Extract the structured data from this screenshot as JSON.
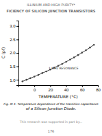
{
  "chart_data": {
    "type": "line",
    "x_label": "TEMPERATURE (°C)",
    "y_label": "C (pf)",
    "x": [
      -15,
      -10,
      -5,
      0,
      5,
      10,
      15,
      20,
      25,
      30,
      35,
      40,
      45,
      50,
      55,
      60,
      65,
      70,
      75
    ],
    "values": [
      0.94,
      1.0,
      1.06,
      1.12,
      1.18,
      1.25,
      1.31,
      1.38,
      1.45,
      1.52,
      1.59,
      1.67,
      1.75,
      1.83,
      1.92,
      2.01,
      2.1,
      2.2,
      2.3
    ],
    "color": "#444444",
    "marker": "circle",
    "xlim": [
      -20,
      80
    ],
    "ylim": [
      0.8,
      3.2
    ],
    "xticks": [
      0,
      20,
      40,
      60,
      80
    ],
    "yticks": [
      {
        "value": 1.0,
        "label": "1.0"
      },
      1.5,
      {
        "value": 2.0,
        "label": "2.0"
      },
      2.5,
      {
        "value": 3.0,
        "label": "3.0"
      }
    ],
    "annotations": [
      {
        "text": "1 MHz RESONANCE",
        "x": 18,
        "y": 1.38
      }
    ],
    "caption": [
      "Fig.  XI-1.  Temperature dependence of the transition capacitance",
      "of a Silicon Junction Diode."
    ]
  },
  "page": {
    "header": [
      "ILLINIUM AND HIGH PURITY*",
      "FICIENCY OF SILICON JUNCTION TRANSISTORS"
    ],
    "footnote": "This research was supported in part by...",
    "page_number": "176"
  }
}
